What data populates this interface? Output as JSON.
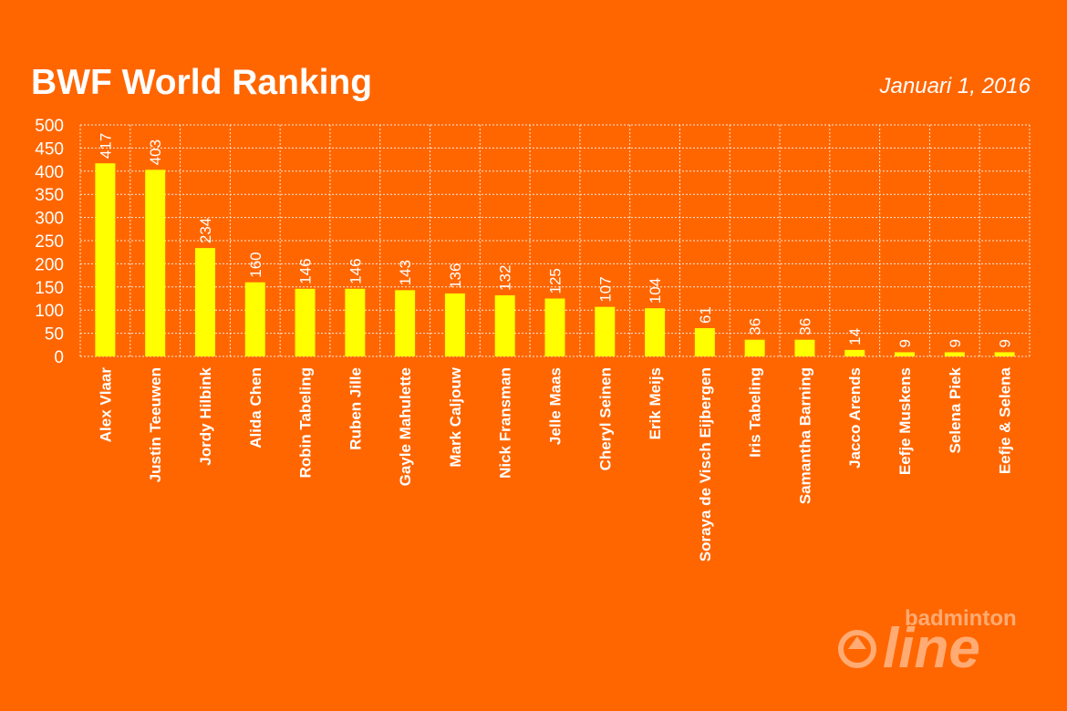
{
  "header": {
    "title": "BWF World Ranking",
    "date": "Januari 1, 2016"
  },
  "logo": {
    "top": "badminton",
    "main": "line"
  },
  "colors": {
    "background": "#ff6600",
    "bar": "#ffff00",
    "text": "#ffffff",
    "grid": "#ffffff"
  },
  "chart_data": {
    "type": "bar",
    "title": "BWF World Ranking",
    "subtitle": "Januari 1, 2016",
    "xlabel": "",
    "ylabel": "",
    "ylim": [
      0,
      500
    ],
    "yticks": [
      0,
      50,
      100,
      150,
      200,
      250,
      300,
      350,
      400,
      450,
      500
    ],
    "grid": true,
    "legend": "none",
    "categories": [
      "Alex Vlaar",
      "Justin Teeuwen",
      "Jordy Hilbink",
      "Alida Chen",
      "Robin Tabeling",
      "Ruben Jille",
      "Gayle Mahulette",
      "Mark Caljouw",
      "Nick Fransman",
      "Jelle Maas",
      "Cheryl Seinen",
      "Erik Meijs",
      "Soraya de Visch Eijbergen",
      "Iris Tabeling",
      "Samantha Barning",
      "Jacco Arends",
      "Eefje Muskens",
      "Selena Piek",
      "Eefje & Selena"
    ],
    "values": [
      417,
      403,
      234,
      160,
      146,
      146,
      143,
      136,
      132,
      125,
      107,
      104,
      61,
      36,
      36,
      14,
      9,
      9,
      9
    ]
  }
}
